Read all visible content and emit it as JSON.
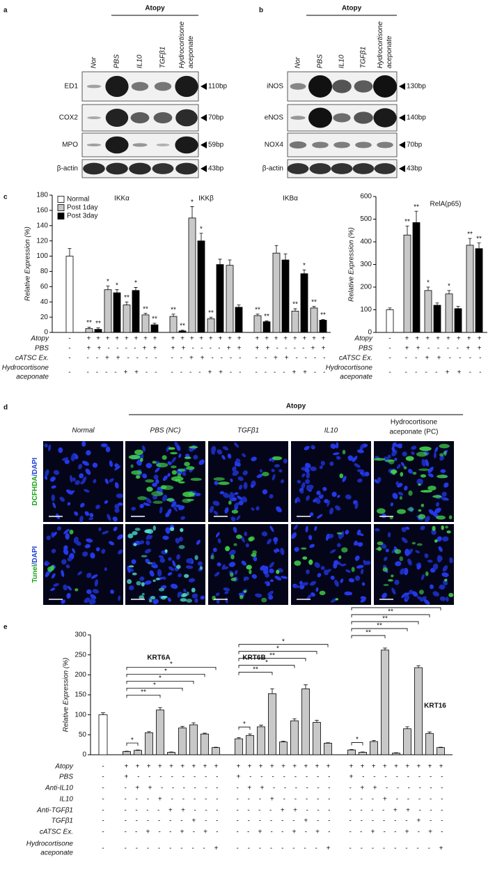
{
  "panel_a": {
    "label": "a",
    "group": "Atopy",
    "lanes": [
      "Nor",
      "PBS",
      "IL10",
      "TGFβ1",
      [
        "Hydrocortisone",
        "aceponate"
      ]
    ],
    "rows": [
      {
        "name": "ED1",
        "size": "110bp"
      },
      {
        "name": "COX2",
        "size": "70bp"
      },
      {
        "name": "MPO",
        "size": "59bp"
      },
      {
        "name": "β-actin",
        "size": "43bp"
      }
    ]
  },
  "panel_b": {
    "label": "b",
    "group": "Atopy",
    "lanes": [
      "Nor",
      "PBS",
      "IL10",
      "TGFβ1",
      [
        "Hydrocortisone",
        "aceponate"
      ]
    ],
    "rows": [
      {
        "name": "iNOS",
        "size": "130bp"
      },
      {
        "name": "eNOS",
        "size": "140bp"
      },
      {
        "name": "NOX4",
        "size": "70bp"
      },
      {
        "name": "β-actin",
        "size": "43bp"
      }
    ]
  },
  "panel_c": {
    "label": "c"
  },
  "panel_d": {
    "label": "d",
    "group": "Atopy",
    "columns": [
      "Normal",
      "PBS (NC)",
      "TGFβ1",
      "IL10",
      [
        "Hydrocortisone",
        "aceponate (PC)"
      ]
    ],
    "row_labels": [
      [
        "DCFHDA",
        "/DAPI"
      ],
      [
        "Tunel",
        "/DAPI"
      ]
    ]
  },
  "panel_e": {
    "label": "e"
  },
  "chart_data": [
    {
      "type": "bar",
      "group_titles": [
        "IKKα",
        "IKKβ",
        "IKBα"
      ],
      "y_label": "Relative Expression (%)",
      "ylim": [
        0,
        180
      ],
      "yticks": [
        0,
        20,
        40,
        60,
        80,
        100,
        120,
        140,
        160,
        180
      ],
      "legend": "top-left",
      "series": [
        {
          "name": "Normal",
          "color": "#ffffff",
          "values": [
            100
          ],
          "errors": [
            10
          ],
          "annotations": [
            null
          ]
        },
        {
          "name": "Post 1day",
          "color": "#c8c8c8",
          "values": [
            5,
            56,
            36,
            23,
            21,
            150,
            18,
            88,
            22,
            104,
            28,
            32
          ],
          "errors": [
            2,
            5,
            4,
            2,
            3,
            15,
            2,
            7,
            2,
            10,
            3,
            2
          ],
          "annotations": [
            "**",
            "*",
            "**",
            "**",
            "**",
            "*",
            "**",
            null,
            "**",
            null,
            "**",
            "**"
          ]
        },
        {
          "name": "Post 3day",
          "color": "#000000",
          "values": [
            4,
            52,
            55,
            10,
            2,
            120,
            89,
            33,
            14,
            95,
            77,
            16
          ],
          "errors": [
            2,
            4,
            4,
            2,
            1,
            10,
            7,
            3,
            1,
            8,
            5,
            1
          ],
          "annotations": [
            "**",
            "*",
            "*",
            "**",
            "**",
            "*",
            null,
            null,
            "**",
            null,
            "*",
            "**"
          ]
        }
      ],
      "treatments": [
        {
          "label": "Atopy",
          "cells": [
            "-",
            "+ + + + + + + +",
            "+ + + + + + + +",
            "+ + + + + + + +"
          ]
        },
        {
          "label": "PBS",
          "cells": [
            "-",
            "+ + - - - - + +",
            "+ + - - - - + +",
            "+ + - - - - + +"
          ]
        },
        {
          "label": "cATSC Ex.",
          "cells": [
            "-",
            "- - + + - - - -",
            "- - + + - - - -",
            "- - + + - - - -"
          ]
        },
        {
          "label": [
            "Hydrocortisone",
            "aceponate"
          ],
          "cells": [
            "-",
            "- - - - + + - -",
            "- - - - + + - -",
            "- - - - + + - -"
          ]
        }
      ]
    },
    {
      "type": "bar",
      "title": "RelA(p65)",
      "y_label": "Relative Expression (%)",
      "ylim": [
        0,
        600
      ],
      "yticks": [
        0,
        100,
        200,
        300,
        400,
        500,
        600
      ],
      "series": [
        {
          "color": "#ffffff",
          "values": [
            100
          ],
          "errors": [
            8
          ],
          "annotations": [
            null
          ]
        },
        {
          "color": "#c8c8c8",
          "values": [
            430,
            185,
            170,
            385
          ],
          "errors": [
            40,
            15,
            15,
            30
          ],
          "annotations": [
            "**",
            "*",
            "*",
            "**"
          ]
        },
        {
          "color": "#000000",
          "values": [
            485,
            120,
            105,
            370
          ],
          "errors": [
            50,
            10,
            10,
            25
          ],
          "annotations": [
            "**",
            null,
            null,
            "**"
          ]
        }
      ],
      "treatments": [
        {
          "label": "Atopy",
          "cells": [
            "-",
            "+ + + + + + + +"
          ]
        },
        {
          "label": "PBS",
          "cells": [
            "-",
            "+ + - - - - + +"
          ]
        },
        {
          "label": "cATSC Ex.",
          "cells": [
            "-",
            "- - + + - - - -"
          ]
        },
        {
          "label": [
            "Hydrocortisone",
            "aceponate"
          ],
          "cells": [
            "-",
            "- - - - + + - -"
          ]
        }
      ]
    },
    {
      "type": "bar",
      "y_label": "Relative Expression (%)",
      "ylim": [
        0,
        300
      ],
      "yticks": [
        0,
        50,
        100,
        150,
        200,
        250,
        300
      ],
      "normal": {
        "color": "#ffffff",
        "value": 100,
        "error": 5
      },
      "groups": [
        {
          "title": "KRT6A",
          "color": "#c8c8c8",
          "values": [
            8,
            11,
            55,
            112,
            6,
            67,
            75,
            52,
            18
          ],
          "errors": [
            1,
            1,
            3,
            6,
            1,
            4,
            5,
            2,
            1
          ],
          "significance": {
            "near": "*",
            "stack": [
              "*",
              "*",
              "*",
              "*",
              "**"
            ]
          }
        },
        {
          "title": "KRT6B",
          "color": "#c8c8c8",
          "values": [
            40,
            48,
            70,
            153,
            32,
            85,
            165,
            81,
            29
          ],
          "errors": [
            3,
            4,
            4,
            12,
            2,
            5,
            10,
            5,
            1
          ],
          "significance": {
            "near": "*",
            "stack": [
              "*",
              "*",
              "**",
              "*",
              "**"
            ]
          }
        },
        {
          "title": "KRT16",
          "color": "#c8c8c8",
          "values": [
            12,
            6,
            33,
            262,
            4,
            65,
            218,
            53,
            18
          ],
          "errors": [
            1,
            1,
            3,
            5,
            1,
            5,
            5,
            4,
            1
          ],
          "significance": {
            "near": "*",
            "stack": [
              "*",
              "**",
              "**",
              "**",
              "**"
            ]
          }
        }
      ],
      "treatments": [
        {
          "label": "Atopy",
          "cells": [
            "-",
            "+ + + + + + + + +",
            "+ + + + + + + + +",
            "+ + + + + + + + +"
          ]
        },
        {
          "label": "PBS",
          "cells": [
            "-",
            "+ - - - - - - - -",
            "+ - - - - - - - -",
            "+ - - - - - - - -"
          ]
        },
        {
          "label": "Anti-IL10",
          "cells": [
            "-",
            "- + + - - - - - -",
            "- + + - - - - - -",
            "- + + - - - - - -"
          ]
        },
        {
          "label": "IL10",
          "cells": [
            "-",
            "- - - + - - - - -",
            "- - - + - - - - -",
            "- - - + - - - - -"
          ]
        },
        {
          "label": "Anti-TGFβ1",
          "cells": [
            "-",
            "- - - - + + - - -",
            "- - - - + + - - -",
            "- - - - + + - - -"
          ]
        },
        {
          "label": "TGFβ1",
          "cells": [
            "-",
            "- - - - - - + - -",
            "- - - - - - + - -",
            "- - - - - - + - -"
          ]
        },
        {
          "label": "cATSC Ex.",
          "cells": [
            "-",
            "- - + - - + - + -",
            "- - + - - + - + -",
            "- - + - - + - + -"
          ]
        },
        {
          "label": [
            "Hydrocortisone",
            "aceponate"
          ],
          "cells": [
            "-",
            "- - - - - - - - +",
            "- - - - - - - - +",
            "- - - - - - - - +"
          ]
        }
      ]
    }
  ]
}
